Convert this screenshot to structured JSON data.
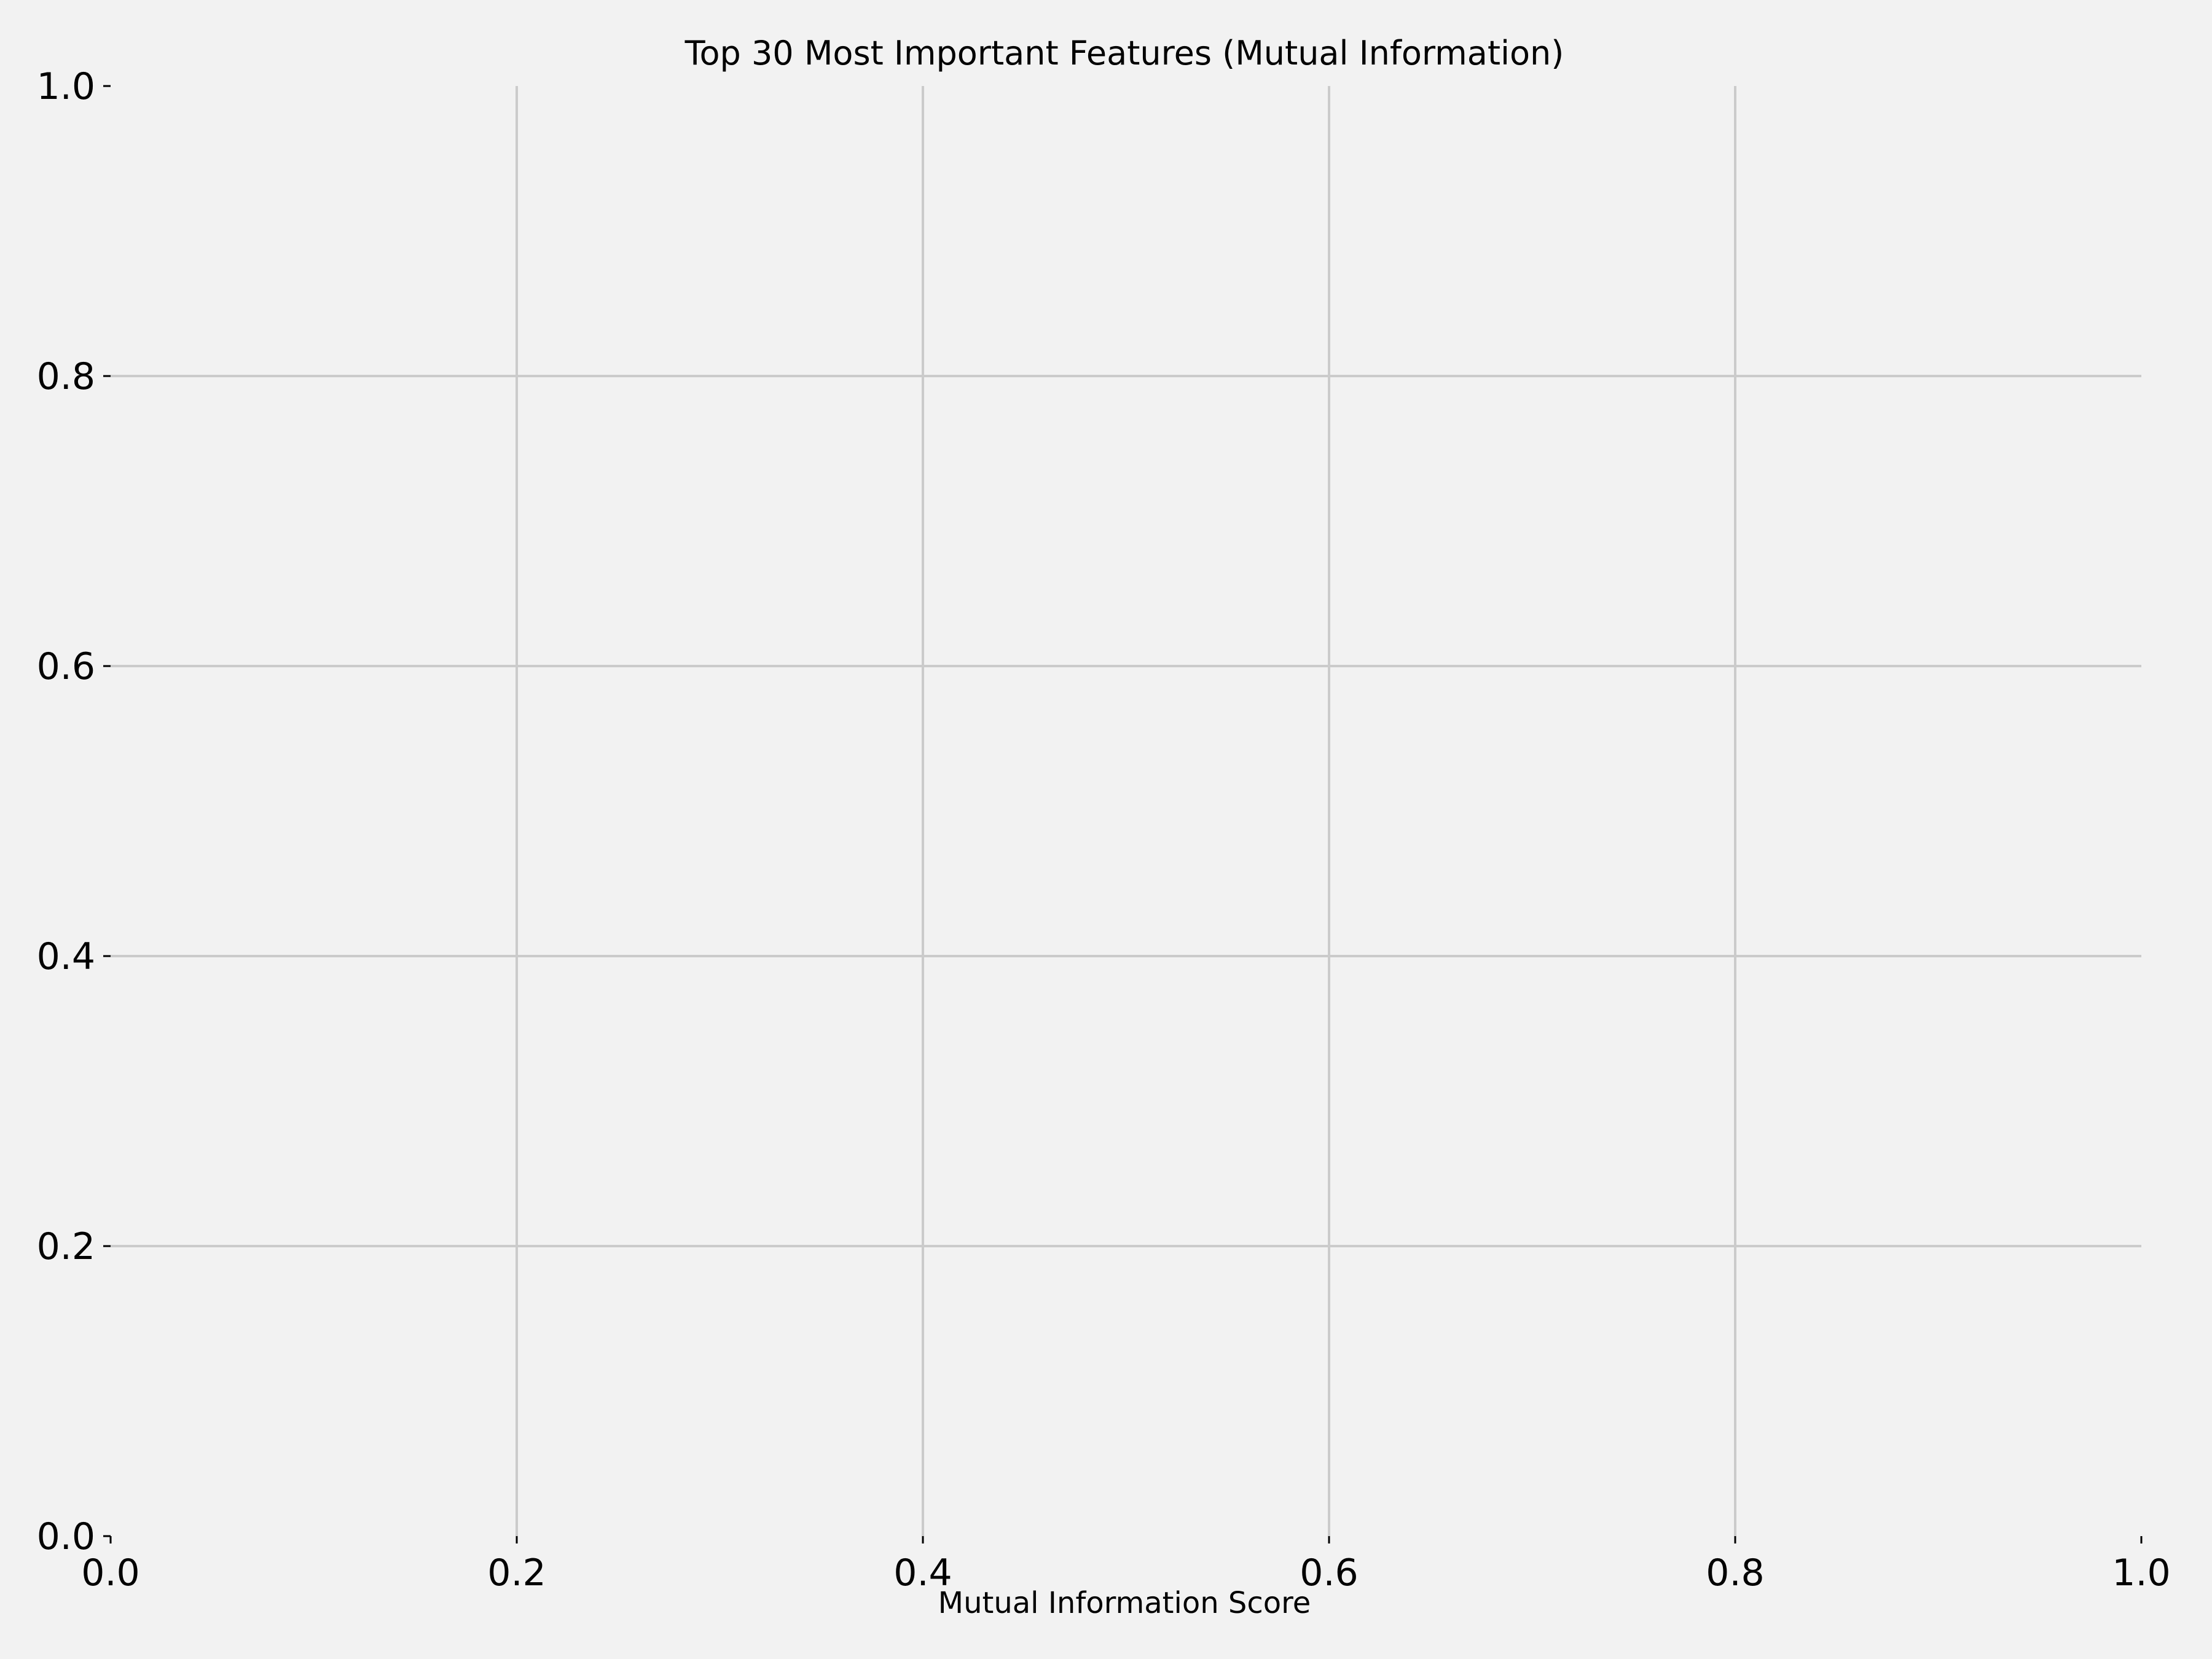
{
  "chart_data": {
    "type": "bar",
    "title": "Top 30 Most Important Features (Mutual Information)",
    "xlabel": "Mutual Information Score",
    "ylabel": "",
    "xlim": [
      0.0,
      1.0
    ],
    "ylim": [
      0.0,
      1.0
    ],
    "xticks": [
      "0.0",
      "0.2",
      "0.4",
      "0.6",
      "0.8",
      "1.0"
    ],
    "yticks": [
      "0.0",
      "0.2",
      "0.4",
      "0.6",
      "0.8",
      "1.0"
    ],
    "categories": [],
    "values": [],
    "grid": true,
    "legend": "none",
    "colors": {
      "background": "#f2f2f2",
      "grid": "#cbcbcb",
      "text": "#000000"
    }
  }
}
